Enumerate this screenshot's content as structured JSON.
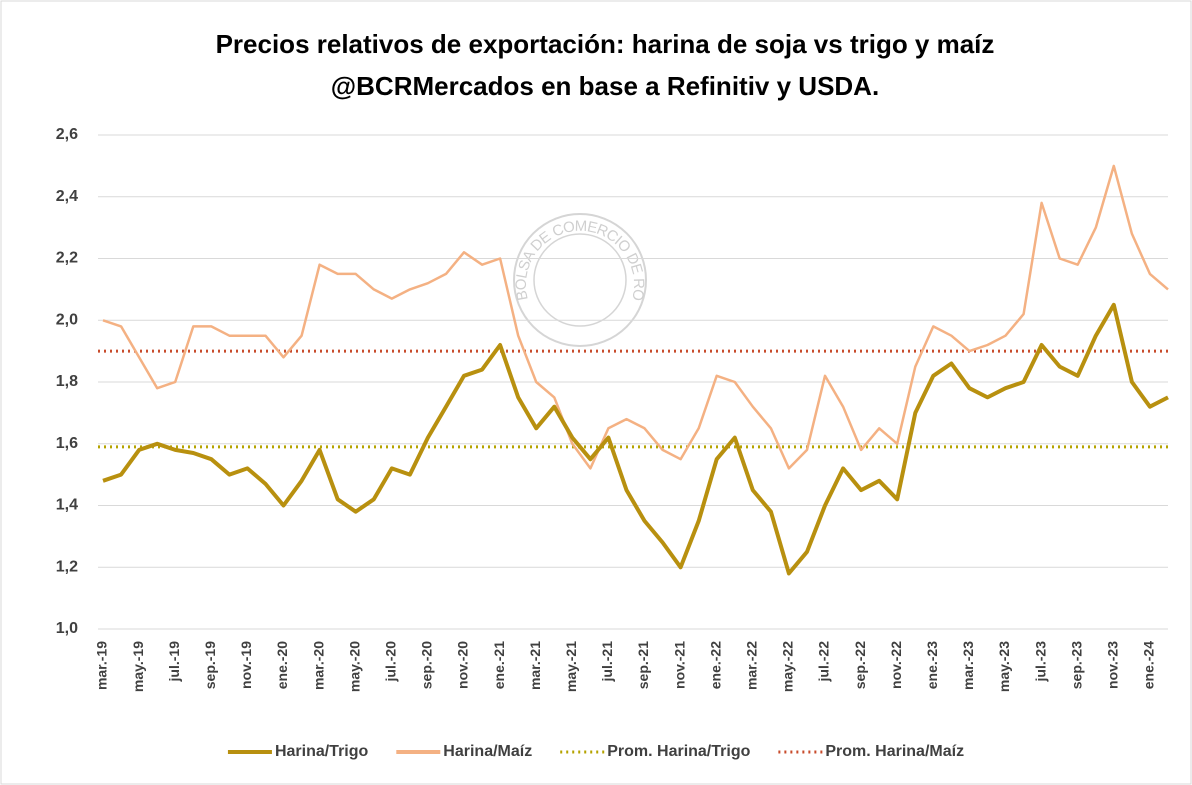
{
  "chart_data": {
    "type": "line",
    "title": "Precios relativos de exportación: harina de soja vs trigo y maíz",
    "subtitle": "@BCRMercados en base a Refinitiv y USDA.",
    "watermark": "BOLSA DE COMERCIO DE ROSARIO",
    "categories": [
      "mar.-19",
      null,
      "may.-19",
      null,
      "jul.-19",
      null,
      "sep.-19",
      null,
      "nov.-19",
      null,
      "ene.-20",
      null,
      "mar.-20",
      null,
      "may.-20",
      null,
      "jul.-20",
      null,
      "sep.-20",
      null,
      "nov.-20",
      null,
      "ene.-21",
      null,
      "mar.-21",
      null,
      "may.-21",
      null,
      "jul.-21",
      null,
      "sep.-21",
      null,
      "nov.-21",
      null,
      "ene.-22",
      null,
      "mar.-22",
      null,
      "may.-22",
      null,
      "jul.-22",
      null,
      "sep.-22",
      null,
      "nov.-22",
      null,
      "ene.-23",
      null,
      "mar.-23",
      null,
      "may.-23",
      null,
      "jul.-23",
      null,
      "sep.-23",
      null,
      "nov.-23",
      null,
      "ene.-24",
      null
    ],
    "series": [
      {
        "name": "Harina/Trigo",
        "color": "#b8900f",
        "width": 4,
        "values": [
          1.48,
          1.5,
          1.58,
          1.6,
          1.58,
          1.57,
          1.55,
          1.5,
          1.52,
          1.47,
          1.4,
          1.48,
          1.58,
          1.42,
          1.38,
          1.42,
          1.52,
          1.5,
          1.62,
          1.72,
          1.82,
          1.84,
          1.92,
          1.75,
          1.65,
          1.72,
          1.62,
          1.55,
          1.62,
          1.45,
          1.35,
          1.28,
          1.2,
          1.35,
          1.55,
          1.62,
          1.45,
          1.38,
          1.18,
          1.25,
          1.4,
          1.52,
          1.45,
          1.48,
          1.42,
          1.7,
          1.82,
          1.86,
          1.78,
          1.75,
          1.78,
          1.8,
          1.92,
          1.85,
          1.82,
          1.95,
          2.05,
          1.8,
          1.72,
          1.75
        ]
      },
      {
        "name": "Harina/Maíz",
        "color": "#f4b183",
        "width": 2.5,
        "values": [
          2.0,
          1.98,
          1.88,
          1.78,
          1.8,
          1.98,
          1.98,
          1.95,
          1.95,
          1.95,
          1.88,
          1.95,
          2.18,
          2.15,
          2.15,
          2.1,
          2.07,
          2.1,
          2.12,
          2.15,
          2.22,
          2.18,
          2.2,
          1.95,
          1.8,
          1.75,
          1.6,
          1.52,
          1.65,
          1.68,
          1.65,
          1.58,
          1.55,
          1.65,
          1.82,
          1.8,
          1.72,
          1.65,
          1.52,
          1.58,
          1.82,
          1.72,
          1.58,
          1.65,
          1.6,
          1.85,
          1.98,
          1.95,
          1.9,
          1.92,
          1.95,
          2.02,
          2.38,
          2.2,
          2.18,
          2.3,
          2.5,
          2.28,
          2.15,
          2.1
        ]
      }
    ],
    "reference_lines": [
      {
        "name": "Prom. Harina/Trigo",
        "color": "#b5a300",
        "value": 1.59
      },
      {
        "name": "Prom. Harina/Maíz",
        "color": "#c84c2c",
        "value": 1.9
      }
    ],
    "ylim": [
      1.0,
      2.6
    ],
    "yticks": [
      {
        "value": 1.0,
        "label": "1,0"
      },
      {
        "value": 1.2,
        "label": "1,2"
      },
      {
        "value": 1.4,
        "label": "1,4"
      },
      {
        "value": 1.6,
        "label": "1,6"
      },
      {
        "value": 1.8,
        "label": "1,8"
      },
      {
        "value": 2.0,
        "label": "2,0"
      },
      {
        "value": 2.2,
        "label": "2,2"
      },
      {
        "value": 2.4,
        "label": "2,4"
      },
      {
        "value": 2.6,
        "label": "2,6"
      }
    ],
    "grid": true,
    "legend": "bottom"
  }
}
